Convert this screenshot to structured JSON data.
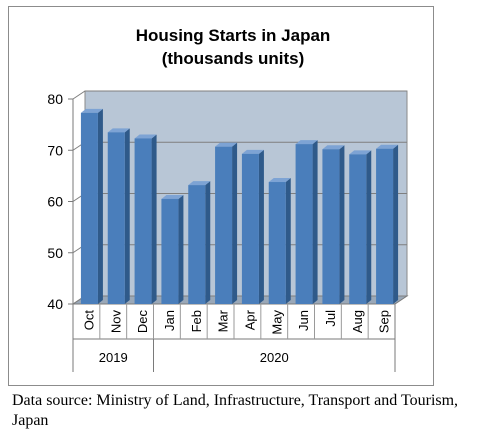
{
  "chart_data": {
    "type": "bar",
    "title_lines": [
      "Housing Starts in Japan",
      "(thousands units)"
    ],
    "categories": [
      "Oct",
      "Nov",
      "Dec",
      "Jan",
      "Feb",
      "Mar",
      "Apr",
      "May",
      "Jun",
      "Jul",
      "Aug",
      "Sep"
    ],
    "year_groups": [
      {
        "label": "2019",
        "count": 3
      },
      {
        "label": "2020",
        "count": 9
      }
    ],
    "values": [
      77.3,
      73.5,
      72.3,
      60.5,
      63.2,
      70.7,
      69.3,
      63.8,
      71.2,
      70.2,
      69.2,
      70.3
    ],
    "ylim": [
      40,
      80
    ],
    "yticks": [
      40,
      50,
      60,
      70,
      80
    ],
    "grid": true,
    "bar_color": "#4a7ebb",
    "bar_side_color": "#2f5a8a",
    "bar_top_color": "#7da3d4",
    "wall_color": "#b8c6d6",
    "xlabel": "",
    "ylabel": ""
  },
  "source_text": "Data source: Ministry of Land, Infrastructure, Transport and Tourism, Japan"
}
